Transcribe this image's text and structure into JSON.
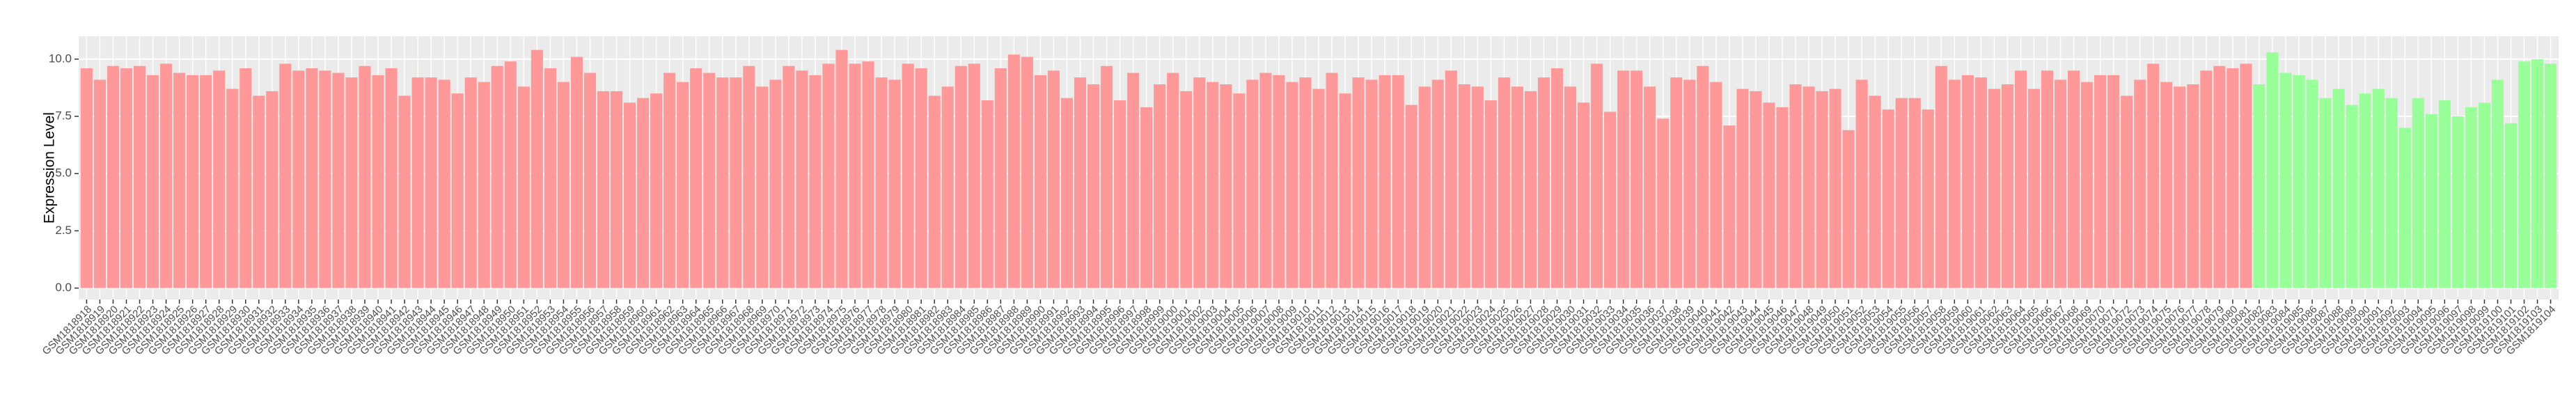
{
  "chart_data": {
    "type": "bar",
    "y_label": "Expression Level",
    "categories": [
      "GSM1818918",
      "GSM1818919",
      "GSM1818920",
      "GSM1818921",
      "GSM1818922",
      "GSM1818923",
      "GSM1818924",
      "GSM1818925",
      "GSM1818926",
      "GSM1818927",
      "GSM1818928",
      "GSM1818929",
      "GSM1818930",
      "GSM1818931",
      "GSM1818932",
      "GSM1818933",
      "GSM1818934",
      "GSM1818935",
      "GSM1818936",
      "GSM1818937",
      "GSM1818938",
      "GSM1818939",
      "GSM1818940",
      "GSM1818941",
      "GSM1818942",
      "GSM1818943",
      "GSM1818944",
      "GSM1818945",
      "GSM1818946",
      "GSM1818947",
      "GSM1818948",
      "GSM1818949",
      "GSM1818950",
      "GSM1818951",
      "GSM1818952",
      "GSM1818953",
      "GSM1818954",
      "GSM1818955",
      "GSM1818956",
      "GSM1818957",
      "GSM1818958",
      "GSM1818959",
      "GSM1818960",
      "GSM1818961",
      "GSM1818962",
      "GSM1818963",
      "GSM1818964",
      "GSM1818965",
      "GSM1818966",
      "GSM1818967",
      "GSM1818968",
      "GSM1818969",
      "GSM1818970",
      "GSM1818971",
      "GSM1818972",
      "GSM1818973",
      "GSM1818974",
      "GSM1818975",
      "GSM1818976",
      "GSM1818977",
      "GSM1818978",
      "GSM1818979",
      "GSM1818980",
      "GSM1818981",
      "GSM1818982",
      "GSM1818983",
      "GSM1818984",
      "GSM1818985",
      "GSM1818986",
      "GSM1818987",
      "GSM1818988",
      "GSM1818989",
      "GSM1818990",
      "GSM1818991",
      "GSM1818992",
      "GSM1818993",
      "GSM1818994",
      "GSM1818995",
      "GSM1818996",
      "GSM1818997",
      "GSM1818998",
      "GSM1818999",
      "GSM1819000",
      "GSM1819001",
      "GSM1819002",
      "GSM1819003",
      "GSM1819004",
      "GSM1819005",
      "GSM1819006",
      "GSM1819007",
      "GSM1819008",
      "GSM1819009",
      "GSM1819010",
      "GSM1819011",
      "GSM1819012",
      "GSM1819013",
      "GSM1819014",
      "GSM1819015",
      "GSM1819016",
      "GSM1819017",
      "GSM1819018",
      "GSM1819019",
      "GSM1819020",
      "GSM1819021",
      "GSM1819022",
      "GSM1819023",
      "GSM1819024",
      "GSM1819025",
      "GSM1819026",
      "GSM1819027",
      "GSM1819028",
      "GSM1819029",
      "GSM1819030",
      "GSM1819031",
      "GSM1819032",
      "GSM1819033",
      "GSM1819034",
      "GSM1819035",
      "GSM1819036",
      "GSM1819037",
      "GSM1819038",
      "GSM1819039",
      "GSM1819040",
      "GSM1819041",
      "GSM1819042",
      "GSM1819043",
      "GSM1819044",
      "GSM1819045",
      "GSM1819046",
      "GSM1819047",
      "GSM1819048",
      "GSM1819049",
      "GSM1819050",
      "GSM1819051",
      "GSM1819052",
      "GSM1819053",
      "GSM1819054",
      "GSM1819055",
      "GSM1819056",
      "GSM1819057",
      "GSM1819058",
      "GSM1819059",
      "GSM1819060",
      "GSM1819061",
      "GSM1819062",
      "GSM1819063",
      "GSM1819064",
      "GSM1819065",
      "GSM1819066",
      "GSM1819067",
      "GSM1819068",
      "GSM1819069",
      "GSM1819070",
      "GSM1819071",
      "GSM1819072",
      "GSM1819073",
      "GSM1819074",
      "GSM1819075",
      "GSM1819076",
      "GSM1819077",
      "GSM1819078",
      "GSM1819079",
      "GSM1819080",
      "GSM1819081",
      "GSM1819082",
      "GSM1819083",
      "GSM1819084",
      "GSM1819085",
      "GSM1819086",
      "GSM1819087",
      "GSM1819088",
      "GSM1819089",
      "GSM1819090",
      "GSM1819091",
      "GSM1819092",
      "GSM1819093",
      "GSM1819094",
      "GSM1819095",
      "GSM1819096",
      "GSM1819097",
      "GSM1819098",
      "GSM1819099",
      "GSM1819100",
      "GSM1819101",
      "GSM1819102",
      "GSM1819103",
      "GSM1819104"
    ],
    "values": [
      9.6,
      9.1,
      9.7,
      9.6,
      9.7,
      9.3,
      9.8,
      9.4,
      9.3,
      9.3,
      9.5,
      8.7,
      9.6,
      8.4,
      8.6,
      9.8,
      9.5,
      9.6,
      9.5,
      9.4,
      9.2,
      9.7,
      9.3,
      9.6,
      8.4,
      9.2,
      9.2,
      9.1,
      8.5,
      9.2,
      9.0,
      9.7,
      9.9,
      8.8,
      10.4,
      9.6,
      9.0,
      10.1,
      9.4,
      8.6,
      8.6,
      8.1,
      8.3,
      8.5,
      9.4,
      9.0,
      9.6,
      9.4,
      9.2,
      9.2,
      9.7,
      8.8,
      9.1,
      9.7,
      9.5,
      9.3,
      9.8,
      10.4,
      9.8,
      9.9,
      9.2,
      9.1,
      9.8,
      9.6,
      8.4,
      8.8,
      9.7,
      9.8,
      8.2,
      9.6,
      10.2,
      10.1,
      9.3,
      9.5,
      8.3,
      9.2,
      8.9,
      9.7,
      8.2,
      9.4,
      7.9,
      8.9,
      9.4,
      8.6,
      9.2,
      9.0,
      8.9,
      8.5,
      9.1,
      9.4,
      9.3,
      9.0,
      9.2,
      8.7,
      9.4,
      8.5,
      9.2,
      9.1,
      9.3,
      9.3,
      8.0,
      8.8,
      9.1,
      9.5,
      8.9,
      8.8,
      8.2,
      9.2,
      8.8,
      8.6,
      9.2,
      9.6,
      8.8,
      8.1,
      9.8,
      7.7,
      9.5,
      9.5,
      8.8,
      7.4,
      9.2,
      9.1,
      9.7,
      9.0,
      7.1,
      8.7,
      8.6,
      8.1,
      7.9,
      8.9,
      8.8,
      8.6,
      8.7,
      6.9,
      9.1,
      8.4,
      7.8,
      8.3,
      8.3,
      7.8,
      9.7,
      9.1,
      9.3,
      9.2,
      8.7,
      8.9,
      9.5,
      8.7,
      9.5,
      9.1,
      9.5,
      9.0,
      9.3,
      9.3,
      8.4,
      9.1,
      9.8,
      9.0,
      8.8,
      8.9,
      9.5,
      9.7,
      9.6,
      9.8,
      8.9,
      10.3,
      9.4,
      9.3,
      9.1,
      8.3,
      8.7,
      8.0,
      8.5,
      8.7,
      8.3,
      7.0,
      8.3,
      7.6,
      8.2,
      7.5,
      7.9,
      8.1,
      9.1,
      7.2,
      9.9,
      10.0,
      9.8
    ],
    "colors": [
      "#ff9999",
      "#ff9999",
      "#ff9999",
      "#ff9999",
      "#ff9999",
      "#ff9999",
      "#ff9999",
      "#ff9999",
      "#ff9999",
      "#ff9999",
      "#ff9999",
      "#ff9999",
      "#ff9999",
      "#ff9999",
      "#ff9999",
      "#ff9999",
      "#ff9999",
      "#ff9999",
      "#ff9999",
      "#ff9999",
      "#ff9999",
      "#ff9999",
      "#ff9999",
      "#ff9999",
      "#ff9999",
      "#ff9999",
      "#ff9999",
      "#ff9999",
      "#ff9999",
      "#ff9999",
      "#ff9999",
      "#ff9999",
      "#ff9999",
      "#ff9999",
      "#ff9999",
      "#ff9999",
      "#ff9999",
      "#ff9999",
      "#ff9999",
      "#ff9999",
      "#ff9999",
      "#ff9999",
      "#ff9999",
      "#ff9999",
      "#ff9999",
      "#ff9999",
      "#ff9999",
      "#ff9999",
      "#ff9999",
      "#ff9999",
      "#ff9999",
      "#ff9999",
      "#ff9999",
      "#ff9999",
      "#ff9999",
      "#ff9999",
      "#ff9999",
      "#ff9999",
      "#ff9999",
      "#ff9999",
      "#ff9999",
      "#ff9999",
      "#ff9999",
      "#ff9999",
      "#ff9999",
      "#ff9999",
      "#ff9999",
      "#ff9999",
      "#ff9999",
      "#ff9999",
      "#ff9999",
      "#ff9999",
      "#ff9999",
      "#ff9999",
      "#ff9999",
      "#ff9999",
      "#ff9999",
      "#ff9999",
      "#ff9999",
      "#ff9999",
      "#ff9999",
      "#ff9999",
      "#ff9999",
      "#ff9999",
      "#ff9999",
      "#ff9999",
      "#ff9999",
      "#ff9999",
      "#ff9999",
      "#ff9999",
      "#ff9999",
      "#ff9999",
      "#ff9999",
      "#ff9999",
      "#ff9999",
      "#ff9999",
      "#ff9999",
      "#ff9999",
      "#ff9999",
      "#ff9999",
      "#ff9999",
      "#ff9999",
      "#ff9999",
      "#ff9999",
      "#ff9999",
      "#ff9999",
      "#ff9999",
      "#ff9999",
      "#ff9999",
      "#ff9999",
      "#ff9999",
      "#ff9999",
      "#ff9999",
      "#ff9999",
      "#ff9999",
      "#ff9999",
      "#ff9999",
      "#ff9999",
      "#ff9999",
      "#ff9999",
      "#ff9999",
      "#ff9999",
      "#ff9999",
      "#ff9999",
      "#ff9999",
      "#ff9999",
      "#ff9999",
      "#ff9999",
      "#ff9999",
      "#ff9999",
      "#ff9999",
      "#ff9999",
      "#ff9999",
      "#ff9999",
      "#ff9999",
      "#ff9999",
      "#ff9999",
      "#ff9999",
      "#ff9999",
      "#ff9999",
      "#ff9999",
      "#ff9999",
      "#ff9999",
      "#ff9999",
      "#ff9999",
      "#ff9999",
      "#ff9999",
      "#ff9999",
      "#ff9999",
      "#ff9999",
      "#ff9999",
      "#ff9999",
      "#ff9999",
      "#ff9999",
      "#ff9999",
      "#ff9999",
      "#ff9999",
      "#ff9999",
      "#ff9999",
      "#ff9999",
      "#ff9999",
      "#ff9999",
      "#ff9999",
      "#ff9999",
      "#99ff99",
      "#99ff99",
      "#99ff99",
      "#99ff99",
      "#99ff99",
      "#99ff99",
      "#99ff99",
      "#99ff99",
      "#99ff99",
      "#99ff99",
      "#99ff99",
      "#99ff99",
      "#99ff99",
      "#99ff99",
      "#99ff99",
      "#99ff99",
      "#99ff99",
      "#99ff99",
      "#99ff99",
      "#99ff99",
      "#99ff99",
      "#99ff99",
      "#99ff99"
    ],
    "ylim": [
      -0.5,
      11
    ],
    "yticks": [
      {
        "value": 0,
        "label": "0.0"
      },
      {
        "value": 2.5,
        "label": "2.5"
      },
      {
        "value": 5,
        "label": "5.0"
      },
      {
        "value": 7.5,
        "label": "7.5"
      },
      {
        "value": 10,
        "label": "10.0"
      }
    ],
    "grid": true
  }
}
